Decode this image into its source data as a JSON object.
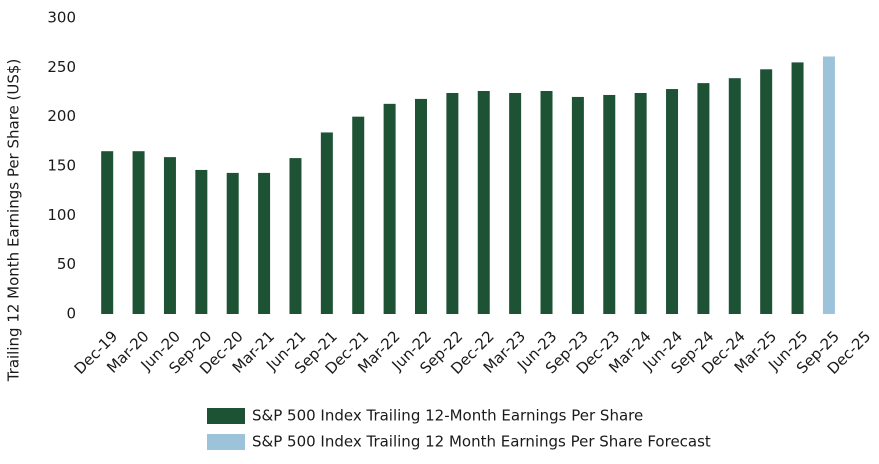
{
  "chart_data": {
    "type": "bar",
    "y_label": "Trailing 12 Month Earnings Per Share (US$)",
    "categories": [
      "Dec-19",
      "Mar-20",
      "Jun-20",
      "Sep-20",
      "Dec-20",
      "Mar-21",
      "Jun-21",
      "Sep-21",
      "Dec-21",
      "Mar-22",
      "Jun-22",
      "Sep-22",
      "Dec-22",
      "Mar-23",
      "Jun-23",
      "Sep-23",
      "Dec-23",
      "Mar-24",
      "Jun-24",
      "Sep-24",
      "Dec-24",
      "Mar-25",
      "Jun-25",
      "Sep-25",
      "Dec-25"
    ],
    "series": [
      {
        "name": "S&P 500 Index Trailing 12-Month Earnings Per Share",
        "color": "#1e5234",
        "values": [
          165,
          165,
          159,
          146,
          143,
          143,
          158,
          184,
          200,
          213,
          218,
          224,
          226,
          224,
          226,
          220,
          222,
          224,
          228,
          234,
          239,
          248,
          255,
          null,
          null
        ]
      },
      {
        "name": "S&P 500 Index Trailing 12 Month Earnings Per Share Forecast",
        "color": "#9dc3da",
        "values": [
          null,
          null,
          null,
          null,
          null,
          null,
          null,
          null,
          null,
          null,
          null,
          null,
          null,
          null,
          null,
          null,
          null,
          null,
          null,
          null,
          null,
          null,
          null,
          261,
          null
        ]
      }
    ],
    "ylim": [
      0,
      300
    ],
    "yticks": [
      0,
      50,
      100,
      150,
      200,
      250,
      300
    ],
    "grid": false
  }
}
